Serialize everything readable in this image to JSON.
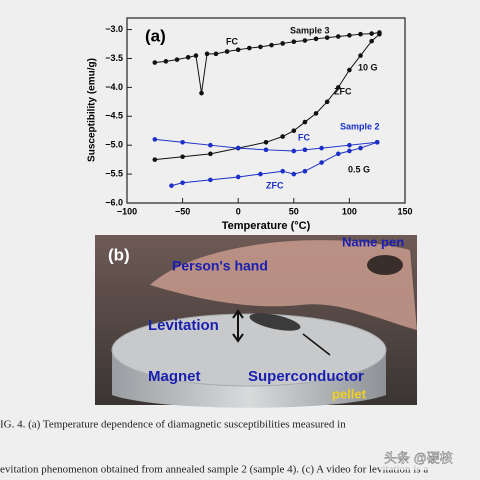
{
  "chart_data": {
    "type": "scatter",
    "panel_label": "(a)",
    "x_label": "Temperature (°C)",
    "y_label": "Susceptibility (emu/g)",
    "xlim": [
      -100,
      150
    ],
    "ylim": [
      -6.0,
      -2.8
    ],
    "xticks": [
      {
        "value": -100,
        "label": "−100"
      },
      {
        "value": -50,
        "label": "−50"
      },
      0,
      50,
      100,
      150
    ],
    "yticks": [
      {
        "value": -3.0,
        "label": "−3.0"
      },
      {
        "value": -3.5,
        "label": "−3.5"
      },
      {
        "value": -4.0,
        "label": "−4.0"
      },
      {
        "value": -4.5,
        "label": "−4.5"
      },
      {
        "value": -5.0,
        "label": "−5.0"
      },
      {
        "value": -5.5,
        "label": "−5.5"
      },
      {
        "value": -6.0,
        "label": "−6.0"
      }
    ],
    "series": [
      {
        "color": "#111111",
        "x": [
          -75,
          -65,
          -55,
          -45,
          -38,
          -33,
          -28,
          -20,
          -10,
          0,
          10,
          20,
          30,
          40,
          50,
          60,
          70,
          80,
          90,
          100,
          110,
          120,
          127
        ],
        "values": [
          -3.57,
          -3.55,
          -3.52,
          -3.48,
          -3.45,
          -4.1,
          -3.42,
          -3.42,
          -3.38,
          -3.35,
          -3.32,
          -3.3,
          -3.27,
          -3.24,
          -3.21,
          -3.19,
          -3.16,
          -3.14,
          -3.12,
          -3.1,
          -3.08,
          -3.07,
          -3.05
        ]
      },
      {
        "color": "#111111",
        "x": [
          -75,
          -50,
          -25,
          0,
          25,
          40,
          50,
          60,
          70,
          80,
          90,
          100,
          110,
          120,
          127
        ],
        "values": [
          -5.25,
          -5.2,
          -5.15,
          -5.05,
          -4.95,
          -4.85,
          -4.75,
          -4.6,
          -4.45,
          -4.25,
          -4.0,
          -3.7,
          -3.45,
          -3.2,
          -3.08
        ]
      },
      {
        "color": "#1c2fc8",
        "x": [
          -75,
          -50,
          -25,
          0,
          25,
          50,
          60,
          75,
          100,
          125
        ],
        "values": [
          -4.9,
          -4.95,
          -5.0,
          -5.05,
          -5.08,
          -5.1,
          -5.08,
          -5.05,
          -5.0,
          -4.95
        ]
      },
      {
        "color": "#1c2fc8",
        "x": [
          -60,
          -50,
          -25,
          0,
          20,
          40,
          50,
          60,
          75,
          90,
          100,
          110,
          125
        ],
        "values": [
          -5.7,
          -5.65,
          -5.6,
          -5.55,
          -5.5,
          -5.45,
          -5.5,
          -5.45,
          -5.3,
          -5.15,
          -5.1,
          -5.05,
          -4.95
        ]
      }
    ],
    "annotations": [
      "FC",
      "Sample 3",
      "10 G",
      "ZFC",
      "FC",
      "Sample 2",
      "0.5 G",
      "ZFC"
    ]
  },
  "photo": {
    "panel_label": "(b)",
    "labels": [
      "Name pen",
      "Person's hand",
      "Levitation",
      "Magnet",
      "Superconductor",
      "pellet"
    ]
  },
  "caption": {
    "lines": [
      "IG. 4. (a) Temperature dependence of diamagnetic susceptibilities measured in",
      "evitation phenomenon obtained from annealed sample 2 (sample 4). (c) A video for levitation is a"
    ]
  },
  "watermark": "头条 @硬核"
}
